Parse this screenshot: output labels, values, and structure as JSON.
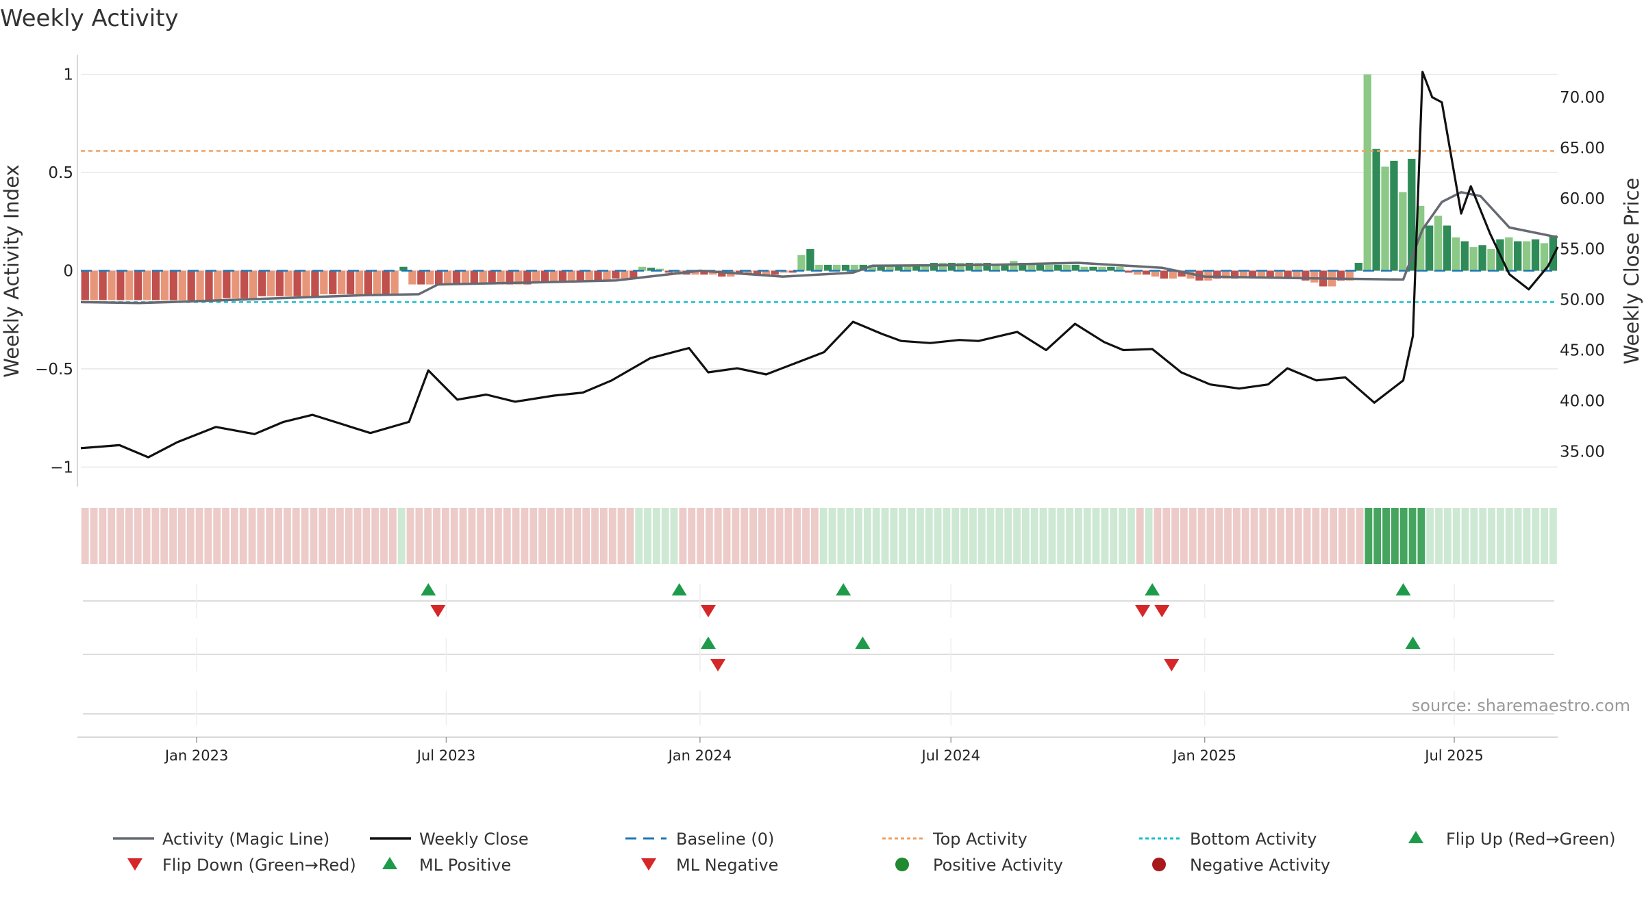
{
  "title": "Weekly Activity",
  "source": "source: sharemaestro.com",
  "colors": {
    "bar_red_dark": "#c0504d",
    "bar_red_light": "#e8967a",
    "bar_green_dark": "#2e8b57",
    "bar_green_light": "#8cc987",
    "magic_line": "#666a73",
    "close": "#111111",
    "baseline": "#1f77b4",
    "top": "#f0a060",
    "bottom": "#17becf",
    "strip_red": "#eccbc8",
    "strip_green": "#cde8d3",
    "strip_green_dark": "#45a55e",
    "marker_up": "#1e9b4a",
    "marker_down": "#d62728",
    "dot_pos": "#1f8a2f",
    "dot_neg": "#a8191c",
    "grid": "#e8e8e8"
  },
  "chart_data": {
    "type": "bar",
    "title": "Weekly Activity",
    "date_range": [
      "2022-10-09",
      "2025-09-14"
    ],
    "left_axis": {
      "label": "Weekly Activity Index",
      "ylim": [
        -1.1,
        1.1
      ],
      "ticks": [
        1,
        0.5,
        0,
        -0.5,
        -1
      ],
      "tick_labels": [
        "1",
        "0.5",
        "0",
        "−0.5",
        "−1"
      ]
    },
    "right_axis": {
      "label": "Weekly Close Price",
      "ylim": [
        31.5,
        74.2
      ],
      "ticks": [
        70,
        65,
        60,
        55,
        50,
        45,
        40,
        35
      ],
      "tick_labels": [
        "70.00",
        "65.00",
        "60.00",
        "55.00",
        "50.00",
        "45.00",
        "40.00",
        "35.00"
      ]
    },
    "x_ticks": [
      {
        "date": "2023-01-01",
        "label": "Jan 2023"
      },
      {
        "date": "2023-07-01",
        "label": "Jul 2023"
      },
      {
        "date": "2024-01-01",
        "label": "Jan 2024"
      },
      {
        "date": "2024-07-01",
        "label": "Jul 2024"
      },
      {
        "date": "2025-01-01",
        "label": "Jan 2025"
      },
      {
        "date": "2025-07-01",
        "label": "Jul 2025"
      }
    ],
    "top_activity": 0.61,
    "bottom_activity": -0.16,
    "baseline": 0,
    "weekly_close": [
      [
        "2022-10-09",
        35.3
      ],
      [
        "2022-11-06",
        35.6
      ],
      [
        "2022-11-27",
        34.4
      ],
      [
        "2022-12-18",
        35.9
      ],
      [
        "2023-01-15",
        37.4
      ],
      [
        "2023-02-12",
        36.7
      ],
      [
        "2023-03-05",
        37.9
      ],
      [
        "2023-03-26",
        38.6
      ],
      [
        "2023-04-16",
        37.7
      ],
      [
        "2023-05-07",
        36.8
      ],
      [
        "2023-06-04",
        37.9
      ],
      [
        "2023-06-18",
        43.0
      ],
      [
        "2023-07-09",
        40.1
      ],
      [
        "2023-07-30",
        40.6
      ],
      [
        "2023-08-20",
        39.9
      ],
      [
        "2023-09-17",
        40.5
      ],
      [
        "2023-10-08",
        40.8
      ],
      [
        "2023-10-29",
        42.0
      ],
      [
        "2023-11-26",
        44.2
      ],
      [
        "2023-12-24",
        45.2
      ],
      [
        "2024-01-07",
        42.8
      ],
      [
        "2024-01-28",
        43.2
      ],
      [
        "2024-02-18",
        42.6
      ],
      [
        "2024-03-10",
        43.7
      ],
      [
        "2024-03-31",
        44.8
      ],
      [
        "2024-04-21",
        47.8
      ],
      [
        "2024-05-12",
        46.6
      ],
      [
        "2024-05-26",
        45.9
      ],
      [
        "2024-06-16",
        45.7
      ],
      [
        "2024-07-07",
        46.0
      ],
      [
        "2024-07-21",
        45.9
      ],
      [
        "2024-08-18",
        46.8
      ],
      [
        "2024-09-08",
        45.0
      ],
      [
        "2024-09-29",
        47.6
      ],
      [
        "2024-10-20",
        45.8
      ],
      [
        "2024-11-03",
        45.0
      ],
      [
        "2024-11-24",
        45.1
      ],
      [
        "2024-12-15",
        42.8
      ],
      [
        "2025-01-05",
        41.6
      ],
      [
        "2025-01-26",
        41.2
      ],
      [
        "2025-02-16",
        41.6
      ],
      [
        "2025-03-02",
        43.2
      ],
      [
        "2025-03-23",
        42.0
      ],
      [
        "2025-04-13",
        42.3
      ],
      [
        "2025-05-04",
        39.8
      ],
      [
        "2025-05-25",
        42.0
      ],
      [
        "2025-06-01",
        46.4
      ],
      [
        "2025-06-08",
        72.5
      ],
      [
        "2025-06-15",
        70.0
      ],
      [
        "2025-06-22",
        69.5
      ],
      [
        "2025-07-06",
        58.5
      ],
      [
        "2025-07-13",
        61.2
      ],
      [
        "2025-07-27",
        56.5
      ],
      [
        "2025-08-10",
        52.5
      ],
      [
        "2025-08-24",
        51.0
      ],
      [
        "2025-09-07",
        53.3
      ],
      [
        "2025-09-14",
        55.2
      ]
    ],
    "magic_line": [
      [
        "2022-10-09",
        -0.16
      ],
      [
        "2022-11-20",
        -0.165
      ],
      [
        "2023-01-01",
        -0.155
      ],
      [
        "2023-03-01",
        -0.14
      ],
      [
        "2023-05-01",
        -0.125
      ],
      [
        "2023-06-11",
        -0.12
      ],
      [
        "2023-06-25",
        -0.07
      ],
      [
        "2023-09-01",
        -0.06
      ],
      [
        "2023-11-01",
        -0.05
      ],
      [
        "2024-01-01",
        0.0
      ],
      [
        "2024-03-01",
        -0.03
      ],
      [
        "2024-04-21",
        -0.01
      ],
      [
        "2024-05-05",
        0.025
      ],
      [
        "2024-08-01",
        0.03
      ],
      [
        "2024-10-01",
        0.04
      ],
      [
        "2024-12-01",
        0.015
      ],
      [
        "2025-01-01",
        -0.03
      ],
      [
        "2025-04-01",
        -0.04
      ],
      [
        "2025-05-25",
        -0.045
      ],
      [
        "2025-06-08",
        0.21
      ],
      [
        "2025-06-22",
        0.35
      ],
      [
        "2025-07-06",
        0.4
      ],
      [
        "2025-07-20",
        0.38
      ],
      [
        "2025-08-10",
        0.22
      ],
      [
        "2025-09-14",
        0.17
      ]
    ],
    "activity_bars": [
      -0.15,
      -0.15,
      -0.15,
      -0.15,
      -0.15,
      -0.15,
      -0.15,
      -0.15,
      -0.15,
      -0.15,
      -0.15,
      -0.15,
      -0.15,
      -0.15,
      -0.15,
      -0.15,
      -0.14,
      -0.14,
      -0.14,
      -0.14,
      -0.13,
      -0.13,
      -0.13,
      -0.13,
      -0.13,
      -0.13,
      -0.13,
      -0.12,
      -0.12,
      -0.12,
      -0.12,
      -0.12,
      -0.12,
      -0.12,
      -0.12,
      -0.12,
      0.02,
      -0.07,
      -0.07,
      -0.07,
      -0.07,
      -0.07,
      -0.07,
      -0.07,
      -0.07,
      -0.07,
      -0.07,
      -0.07,
      -0.07,
      -0.07,
      -0.07,
      -0.06,
      -0.06,
      -0.06,
      -0.06,
      -0.06,
      -0.05,
      -0.05,
      -0.05,
      -0.05,
      -0.04,
      -0.04,
      -0.04,
      0.02,
      0.015,
      0.01,
      -0.01,
      -0.02,
      -0.02,
      -0.02,
      -0.02,
      -0.02,
      -0.03,
      -0.03,
      -0.02,
      -0.02,
      -0.02,
      -0.02,
      -0.02,
      -0.01,
      -0.01,
      0.08,
      0.11,
      0.03,
      0.03,
      0.03,
      0.03,
      0.03,
      0.03,
      0.03,
      0.03,
      0.03,
      0.03,
      0.03,
      0.03,
      0.03,
      0.04,
      0.04,
      0.04,
      0.04,
      0.04,
      0.04,
      0.04,
      0.03,
      0.03,
      0.05,
      0.04,
      0.03,
      0.03,
      0.03,
      0.03,
      0.03,
      0.03,
      0.02,
      0.02,
      0.02,
      0.02,
      0.02,
      -0.01,
      -0.02,
      -0.02,
      -0.03,
      -0.04,
      -0.04,
      -0.03,
      -0.04,
      -0.05,
      -0.05,
      -0.04,
      -0.04,
      -0.04,
      -0.03,
      -0.03,
      -0.03,
      -0.03,
      -0.04,
      -0.04,
      -0.04,
      -0.05,
      -0.06,
      -0.08,
      -0.08,
      -0.05,
      -0.05,
      0.04,
      1.0,
      0.62,
      0.53,
      0.56,
      0.4,
      0.57,
      0.33,
      0.23,
      0.28,
      0.23,
      0.17,
      0.15,
      0.12,
      0.13,
      0.11,
      0.16,
      0.17,
      0.15,
      0.15,
      0.16,
      0.14,
      0.18
    ],
    "activity_strip": "RRRRRRRRRRRRRRRRRRRRRRRRRRRRRRRRRRRRGRRRRRRRRRRRRRRRRRRRRRRRRRRGGGGGRRRRRRRRRRRRRRRRGGGGGGGGGGGGGGGGGGGGGGGGGGGGGGGGGGGGRGRRRRRRRRRRRRRRRRRRRRRRRRDDDDDDDGGGGGGGGGGGGGGG",
    "flip_up": [
      "2023-06-18",
      "2023-12-17",
      "2024-04-14",
      "2024-11-24",
      "2025-05-25"
    ],
    "flip_down": [
      "2023-06-25",
      "2024-01-07",
      "2024-11-17",
      "2024-12-01"
    ],
    "ml_positive": [
      "2024-01-07",
      "2024-04-28",
      "2025-06-01"
    ],
    "ml_negative": [
      "2024-01-14",
      "2024-12-08"
    ]
  },
  "legend": [
    {
      "label": "Activity (Magic Line)",
      "symbol": "line",
      "color": "#666a73"
    },
    {
      "label": "Weekly Close",
      "symbol": "line",
      "color": "#111111"
    },
    {
      "label": "Baseline (0)",
      "symbol": "dash",
      "color": "#1f77b4"
    },
    {
      "label": "Top Activity",
      "symbol": "dot-line",
      "color": "#f0a060"
    },
    {
      "label": "Bottom Activity",
      "symbol": "dot-line",
      "color": "#17becf"
    },
    {
      "label": "Flip Up (Red→Green)",
      "symbol": "triangle-up",
      "color": "#1e9b4a"
    },
    {
      "label": "Flip Down (Green→Red)",
      "symbol": "triangle-down",
      "color": "#d62728"
    },
    {
      "label": "ML Positive",
      "symbol": "triangle-up",
      "color": "#1e9b4a"
    },
    {
      "label": "ML Negative",
      "symbol": "triangle-down",
      "color": "#d62728"
    },
    {
      "label": "Positive Activity",
      "symbol": "circle",
      "color": "#1f8a2f"
    },
    {
      "label": "Negative Activity",
      "symbol": "circle",
      "color": "#a8191c"
    }
  ]
}
